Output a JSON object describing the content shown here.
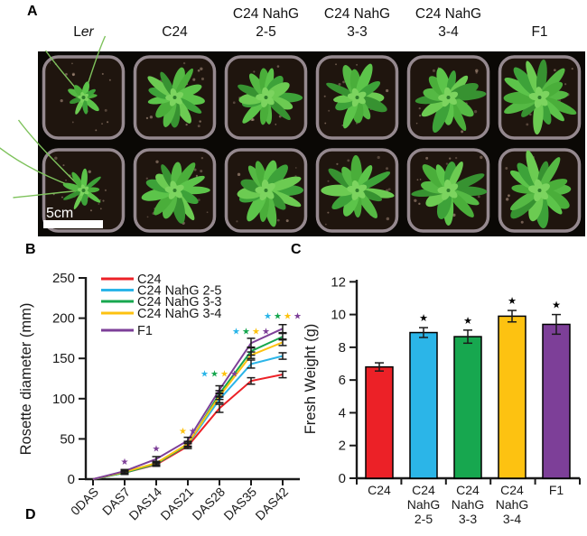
{
  "colors": {
    "red": "#EC2127",
    "cyan": "#2BB5E8",
    "green": "#17A74F",
    "yellow": "#FDC211",
    "purple": "#7D3F98",
    "axis": "#1a1a1a",
    "photo_bg": "#0a0805",
    "pot_soil": "#1f150e",
    "pot_rim": "#95898f"
  },
  "panels": {
    "a": {
      "label": "A",
      "columns": [
        {
          "top": "",
          "main": "L",
          "main_italic": "er"
        },
        {
          "top": "",
          "main": "C24",
          "main_italic": ""
        },
        {
          "top": "C24 NahG",
          "main": "2-5",
          "main_italic": ""
        },
        {
          "top": "C24 NahG",
          "main": "3-3",
          "main_italic": ""
        },
        {
          "top": "C24 NahG",
          "main": "3-4",
          "main_italic": ""
        },
        {
          "top": "",
          "main": "F1",
          "main_italic": ""
        }
      ],
      "rows": 2,
      "scale_bar_label": "5cm",
      "plant_scales": [
        0.5,
        0.82,
        0.9,
        0.86,
        0.9,
        0.95
      ]
    },
    "b": {
      "label": "B"
    },
    "c": {
      "label": "C"
    },
    "d": {
      "label": "D"
    }
  },
  "chart_data": [
    {
      "id": "rosette_diameter",
      "type": "line",
      "title": "",
      "xlabel": "",
      "ylabel": "Rosette diameter (mm)",
      "categories": [
        "0DAS",
        "DAS7",
        "DAS14",
        "DAS21",
        "DAS28",
        "DAS35",
        "DAS42"
      ],
      "ylim": [
        0,
        250
      ],
      "yticks": [
        0,
        50,
        100,
        150,
        200,
        250
      ],
      "grid": false,
      "legend_position": "top-left",
      "series": [
        {
          "name": "C24",
          "color": "#EC2127",
          "values": [
            0,
            8,
            18,
            41,
            88,
            122,
            130
          ],
          "errors": [
            0,
            2,
            2,
            3,
            5,
            4,
            4
          ]
        },
        {
          "name": "C24 NahG 2-5",
          "color": "#2BB5E8",
          "values": [
            0,
            8,
            19,
            43,
            99,
            143,
            153
          ],
          "errors": [
            0,
            2,
            2,
            3,
            4,
            5,
            4
          ]
        },
        {
          "name": "C24 NahG 3-3",
          "color": "#17A74F",
          "values": [
            0,
            8,
            19,
            43,
            106,
            159,
            177
          ],
          "errors": [
            0,
            2,
            2,
            3,
            4,
            5,
            4
          ]
        },
        {
          "name": "C24 NahG 3-4",
          "color": "#FDC211",
          "values": [
            0,
            9,
            20,
            44,
            103,
            154,
            170
          ],
          "errors": [
            0,
            2,
            2,
            3,
            4,
            4,
            4
          ]
        },
        {
          "name": "F1",
          "color": "#7D3F98",
          "values": [
            0,
            10,
            25,
            48,
            111,
            169,
            187
          ],
          "errors": [
            0,
            2,
            3,
            4,
            5,
            6,
            5
          ]
        }
      ],
      "significance": [
        {
          "category": "DAS7",
          "star_colors": [
            "#7D3F98"
          ],
          "y": 22
        },
        {
          "category": "DAS14",
          "star_colors": [
            "#7D3F98"
          ],
          "y": 38
        },
        {
          "category": "DAS21",
          "star_colors": [
            "#FDC211",
            "#7D3F98"
          ],
          "y": 60
        },
        {
          "category": "DAS28",
          "star_colors": [
            "#2BB5E8",
            "#17A74F",
            "#FDC211",
            "#7D3F98"
          ],
          "y": 131
        },
        {
          "category": "DAS35",
          "star_colors": [
            "#2BB5E8",
            "#17A74F",
            "#FDC211",
            "#7D3F98"
          ],
          "y": 184
        },
        {
          "category": "DAS42",
          "star_colors": [
            "#2BB5E8",
            "#17A74F",
            "#FDC211",
            "#7D3F98"
          ],
          "y": 203
        }
      ]
    },
    {
      "id": "fresh_weight",
      "type": "bar",
      "title": "",
      "xlabel": "",
      "ylabel": "Fresh Weight (g)",
      "categories": [
        "C24",
        "C24 NahG 2-5",
        "C24 NahG 3-3",
        "C24 NahG 3-4",
        "F1"
      ],
      "category_lines": [
        [
          "C24"
        ],
        [
          "C24",
          "NahG",
          "2-5"
        ],
        [
          "C24",
          "NahG",
          "3-3"
        ],
        [
          "C24",
          "NahG",
          "3-4"
        ],
        [
          "F1"
        ]
      ],
      "values": [
        6.8,
        8.9,
        8.65,
        9.9,
        9.4
      ],
      "errors": [
        0.25,
        0.3,
        0.4,
        0.35,
        0.6
      ],
      "significant": [
        false,
        true,
        true,
        true,
        true
      ],
      "bar_colors": [
        "#EC2127",
        "#2BB5E8",
        "#17A74F",
        "#FDC211",
        "#7D3F98"
      ],
      "ylim": [
        0,
        12
      ],
      "yticks": [
        0,
        2,
        4,
        6,
        8,
        10,
        12
      ],
      "grid": false
    }
  ]
}
